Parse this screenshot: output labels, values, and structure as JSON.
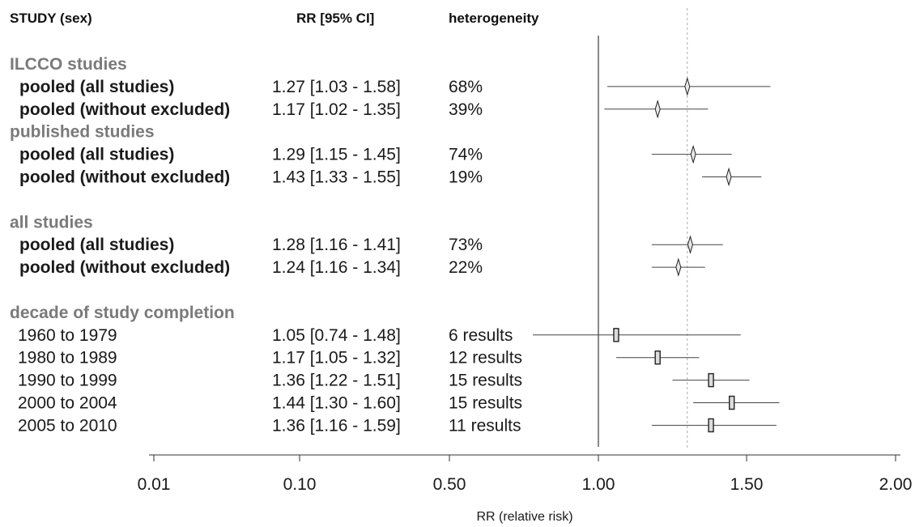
{
  "headers": {
    "study": "STUDY (sex)",
    "rr": "RR [95% CI]",
    "heterogeneity": "heterogeneity"
  },
  "chart_data": {
    "type": "forest",
    "xlabel": "RR (relative risk)",
    "x_ticks": [
      "0.01",
      "0.10",
      "0.50",
      "1.00",
      "1.50",
      "2.00"
    ],
    "reference_line": 1.0,
    "dotted_line": 1.3,
    "rows": [
      {
        "kind": "section",
        "label": "ILCCO studies"
      },
      {
        "kind": "pooled",
        "label": "pooled (all studies)",
        "rr_text": "1.27 [1.03 - 1.58]",
        "het": "68%",
        "rr": 1.3,
        "lo": 1.03,
        "hi": 1.58,
        "marker": "diamond"
      },
      {
        "kind": "pooled",
        "label": "pooled (without excluded)",
        "rr_text": "1.17 [1.02 - 1.35]",
        "het": "39%",
        "rr": 1.2,
        "lo": 1.02,
        "hi": 1.37,
        "marker": "diamond"
      },
      {
        "kind": "section",
        "label": "published studies"
      },
      {
        "kind": "pooled",
        "label": "pooled (all studies)",
        "rr_text": "1.29 [1.15 - 1.45]",
        "het": "74%",
        "rr": 1.32,
        "lo": 1.18,
        "hi": 1.45,
        "marker": "diamond"
      },
      {
        "kind": "pooled",
        "label": "pooled (without excluded)",
        "rr_text": "1.43 [1.33 - 1.55]",
        "het": "19%",
        "rr": 1.44,
        "lo": 1.35,
        "hi": 1.55,
        "marker": "diamond"
      },
      {
        "kind": "blank"
      },
      {
        "kind": "section",
        "label": "all studies"
      },
      {
        "kind": "pooled",
        "label": "pooled (all studies)",
        "rr_text": "1.28 [1.16 - 1.41]",
        "het": "73%",
        "rr": 1.31,
        "lo": 1.18,
        "hi": 1.42,
        "marker": "diamond"
      },
      {
        "kind": "pooled",
        "label": "pooled (without excluded)",
        "rr_text": "1.24 [1.16 - 1.34]",
        "het": "22%",
        "rr": 1.27,
        "lo": 1.18,
        "hi": 1.36,
        "marker": "diamond"
      },
      {
        "kind": "blank"
      },
      {
        "kind": "section",
        "label": "decade of study completion"
      },
      {
        "kind": "study",
        "label": "1960 to 1979",
        "rr_text": "1.05 [0.74 - 1.48]",
        "het": "6 results",
        "rr": 1.06,
        "lo": 0.78,
        "hi": 1.48,
        "marker": "square"
      },
      {
        "kind": "study",
        "label": "1980 to 1989",
        "rr_text": "1.17 [1.05 - 1.32]",
        "het": "12 results",
        "rr": 1.2,
        "lo": 1.06,
        "hi": 1.34,
        "marker": "square"
      },
      {
        "kind": "study",
        "label": "1990 to 1999",
        "rr_text": "1.36 [1.22 - 1.51]",
        "het": "15 results",
        "rr": 1.38,
        "lo": 1.25,
        "hi": 1.51,
        "marker": "square"
      },
      {
        "kind": "study",
        "label": "2000 to 2004",
        "rr_text": "1.44 [1.30 - 1.60]",
        "het": "15 results",
        "rr": 1.45,
        "lo": 1.32,
        "hi": 1.61,
        "marker": "square"
      },
      {
        "kind": "study",
        "label": "2005 to 2010",
        "rr_text": "1.36 [1.16 - 1.59]",
        "het": "11 results",
        "rr": 1.38,
        "lo": 1.18,
        "hi": 1.6,
        "marker": "square"
      }
    ]
  }
}
